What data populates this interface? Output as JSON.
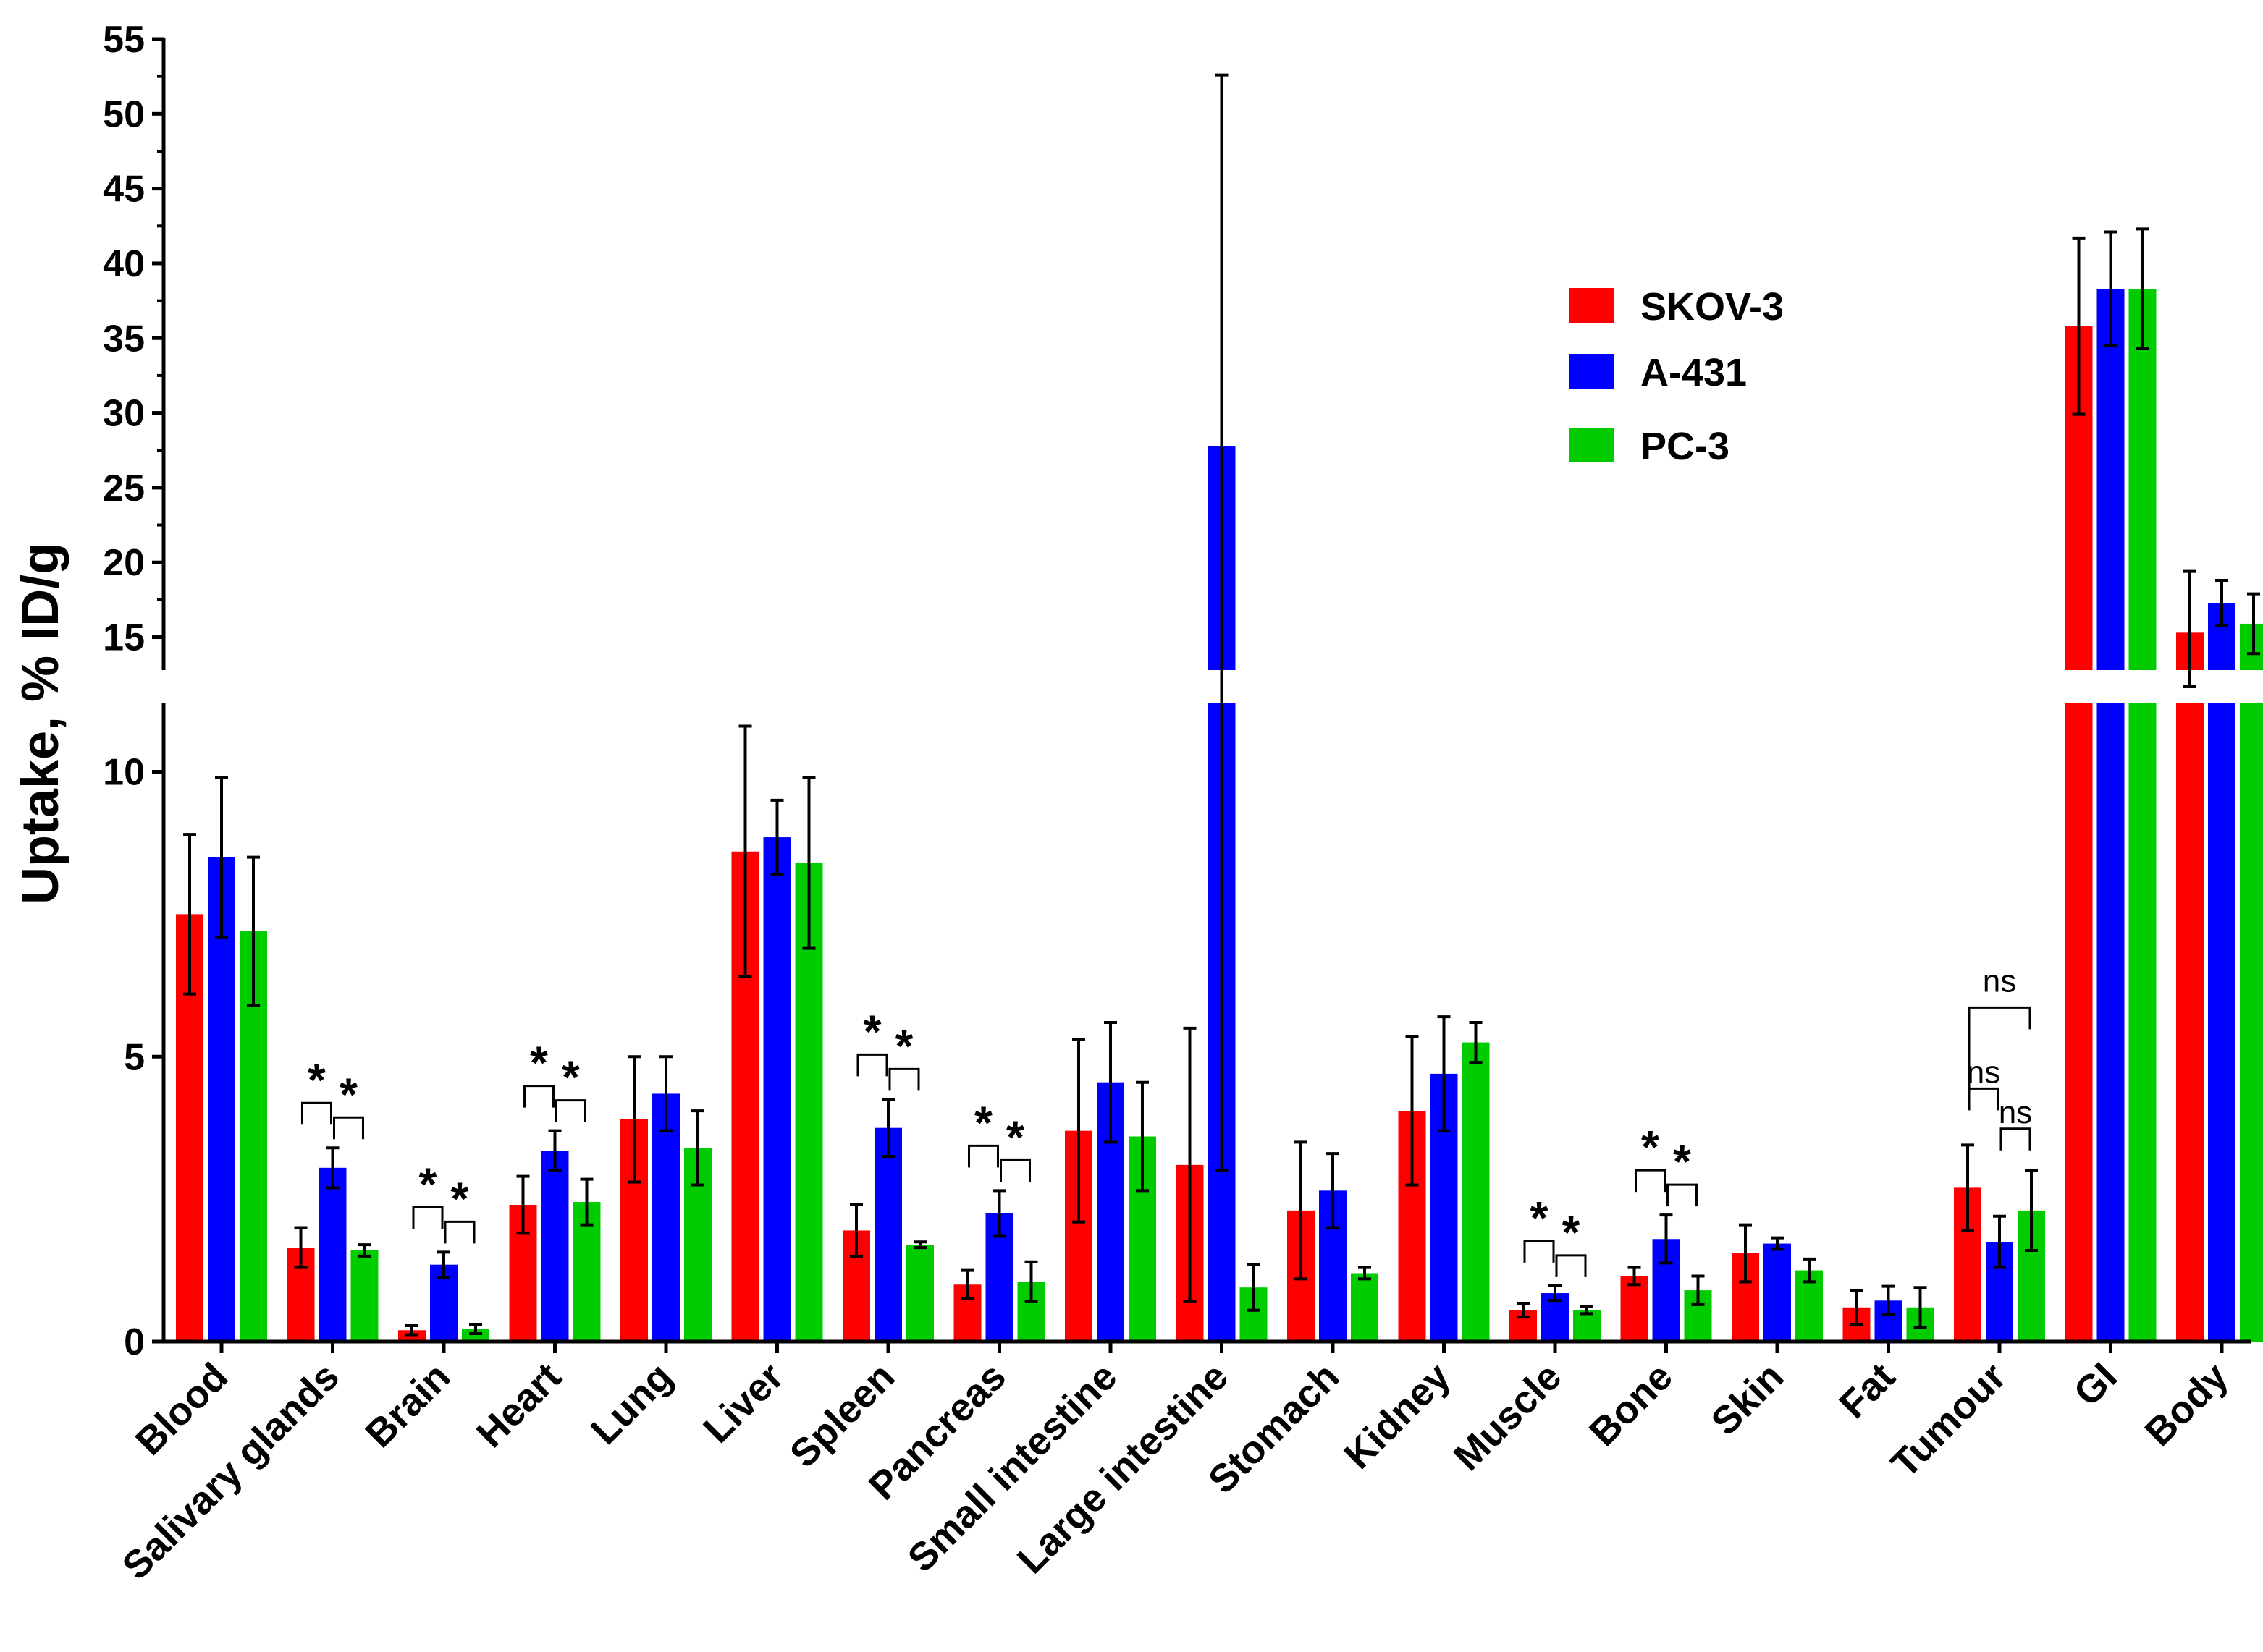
{
  "chart_data": {
    "type": "bar",
    "ylabel": "Uptake, % ID/g",
    "xlabel": "",
    "axis_break": {
      "lower": [
        0,
        11.2
      ],
      "upper": [
        12.8,
        55
      ]
    },
    "lower_ticks": [
      0,
      5,
      10
    ],
    "upper_ticks": [
      15,
      20,
      25,
      30,
      35,
      40,
      45,
      50,
      55
    ],
    "lower_tick_labels": [
      "0",
      "5",
      "10"
    ],
    "upper_tick_labels": [
      "15",
      "20",
      "25",
      "30",
      "35",
      "40",
      "45",
      "50",
      "55"
    ],
    "categories": [
      "Blood",
      "Salivary glands",
      "Brain",
      "Heart",
      "Lung",
      "Liver",
      "Spleen",
      "Pancreas",
      "Small intestine",
      "Large intestine",
      "Stomach",
      "Kidney",
      "Muscle",
      "Bone",
      "Skin",
      "Fat",
      "Tumour",
      "GI",
      "Body"
    ],
    "legend_position": "top-right",
    "series": [
      {
        "name": "SKOV-3",
        "color": "#ff0000",
        "values": [
          7.5,
          1.65,
          0.2,
          2.4,
          3.9,
          8.6,
          1.95,
          1.0,
          3.7,
          3.1,
          2.3,
          4.05,
          0.55,
          1.15,
          1.55,
          0.6,
          2.7,
          35.8,
          15.3
        ],
        "errors": [
          1.4,
          0.35,
          0.08,
          0.5,
          1.1,
          2.2,
          0.45,
          0.25,
          1.6,
          2.4,
          1.2,
          1.3,
          0.12,
          0.15,
          0.5,
          0.3,
          0.75,
          5.9,
          4.1
        ]
      },
      {
        "name": "A-431",
        "color": "#0000ff",
        "values": [
          8.5,
          3.05,
          1.35,
          3.35,
          4.35,
          8.85,
          3.75,
          2.25,
          4.55,
          27.8,
          2.65,
          4.7,
          0.85,
          1.8,
          1.72,
          0.72,
          1.75,
          38.3,
          17.3
        ],
        "errors": [
          1.4,
          0.35,
          0.22,
          0.35,
          0.65,
          0.65,
          0.5,
          0.4,
          1.05,
          24.8,
          0.65,
          1.0,
          0.13,
          0.42,
          0.1,
          0.25,
          0.45,
          3.8,
          1.5
        ]
      },
      {
        "name": "PC-3",
        "color": "#00cc00",
        "values": [
          7.2,
          1.6,
          0.22,
          2.45,
          3.4,
          8.4,
          1.7,
          1.05,
          3.6,
          0.95,
          1.2,
          5.25,
          0.55,
          0.9,
          1.25,
          0.6,
          2.3,
          38.3,
          15.9
        ],
        "errors": [
          1.3,
          0.1,
          0.08,
          0.4,
          0.65,
          1.5,
          0.05,
          0.35,
          0.95,
          0.4,
          0.1,
          0.35,
          0.06,
          0.25,
          0.2,
          0.35,
          0.7,
          4.0,
          2.0
        ]
      }
    ],
    "annotations": [
      {
        "category": "Salivary glands",
        "pairs": [
          "*",
          "*"
        ]
      },
      {
        "category": "Brain",
        "pairs": [
          "*",
          "*"
        ]
      },
      {
        "category": "Heart",
        "pairs": [
          "*",
          "*"
        ]
      },
      {
        "category": "Spleen",
        "pairs": [
          "*",
          "*"
        ]
      },
      {
        "category": "Pancreas",
        "pairs": [
          "*",
          "*"
        ]
      },
      {
        "category": "Muscle",
        "pairs": [
          "*",
          "*"
        ]
      },
      {
        "category": "Bone",
        "pairs": [
          "*",
          "*"
        ]
      },
      {
        "category": "Tumour",
        "pairs": [
          "ns",
          "ns"
        ],
        "outer": "ns"
      }
    ]
  }
}
